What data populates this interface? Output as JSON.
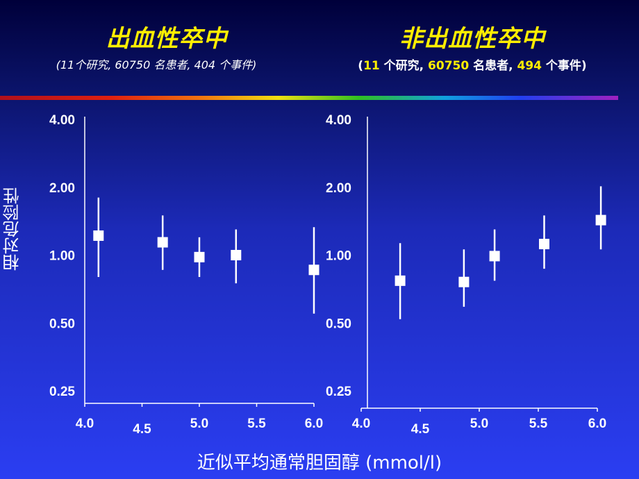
{
  "header": {
    "left_title": "出血性卒中",
    "left_subtitle": "(11个研究, 60750 名患者, 404 个事件)",
    "right_title": "非出血性卒中",
    "right_subtitle": {
      "open": "(",
      "n_studies": "11",
      "studies_word": " 个研究, ",
      "n_patients": "60750",
      "patients_word": " 名患者, ",
      "n_events": "494",
      "events_word": " 个事件)"
    }
  },
  "ylabel": "相对危险性",
  "xlabel": "近似平均通常胆固醇 (mmol/l)",
  "colors": {
    "title": "#ffee00",
    "marker": "#ffffff",
    "background": "#2b3ef2"
  },
  "chart_data": [
    {
      "type": "scatter",
      "title": "出血性卒中",
      "scale_y": "log",
      "yticks": [
        0.25,
        0.5,
        1.0,
        2.0,
        4.0
      ],
      "ytick_labels": [
        "0.25",
        "0.50",
        "1.00",
        "2.00",
        "4.00"
      ],
      "xticks": [
        4.0,
        4.5,
        5.0,
        5.5,
        6.0
      ],
      "xtick_labels": [
        "4.0",
        "4.5",
        "5.0",
        "5.5",
        "6.0"
      ],
      "xlim": [
        4.0,
        6.0
      ],
      "ylim": [
        0.25,
        4.0
      ],
      "points": [
        {
          "x": 4.12,
          "y": 1.22,
          "lo": 0.8,
          "hi": 1.8
        },
        {
          "x": 4.68,
          "y": 1.14,
          "lo": 0.86,
          "hi": 1.5
        },
        {
          "x": 5.0,
          "y": 0.98,
          "lo": 0.8,
          "hi": 1.2
        },
        {
          "x": 5.32,
          "y": 1.0,
          "lo": 0.75,
          "hi": 1.3
        },
        {
          "x": 6.0,
          "y": 0.86,
          "lo": 0.55,
          "hi": 1.33
        }
      ]
    },
    {
      "type": "scatter",
      "title": "非出血性卒中",
      "scale_y": "log",
      "yticks": [
        0.25,
        0.5,
        1.0,
        2.0,
        4.0
      ],
      "ytick_labels": [
        "0.25",
        "0.50",
        "1.00",
        "2.00",
        "4.00"
      ],
      "xticks": [
        4.0,
        4.5,
        5.0,
        5.5,
        6.0
      ],
      "xtick_labels": [
        "4.0",
        "4.5",
        "5.0",
        "5.5",
        "6.0"
      ],
      "xlim": [
        4.0,
        6.0
      ],
      "ylim": [
        0.25,
        4.0
      ],
      "points": [
        {
          "x": 4.33,
          "y": 0.77,
          "lo": 0.52,
          "hi": 1.13
        },
        {
          "x": 4.87,
          "y": 0.76,
          "lo": 0.59,
          "hi": 1.06
        },
        {
          "x": 5.13,
          "y": 0.99,
          "lo": 0.77,
          "hi": 1.3
        },
        {
          "x": 5.55,
          "y": 1.12,
          "lo": 0.87,
          "hi": 1.5
        },
        {
          "x": 6.03,
          "y": 1.43,
          "lo": 1.06,
          "hi": 2.02
        }
      ]
    }
  ]
}
